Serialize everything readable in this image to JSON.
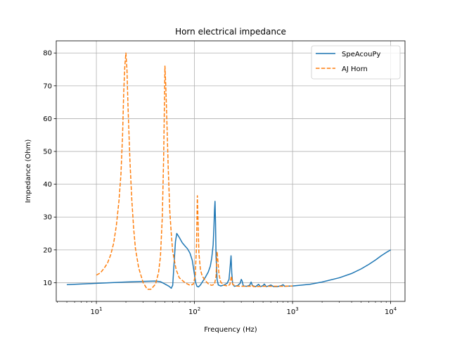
{
  "chart_data": {
    "type": "line",
    "title": "Horn electrical impedance",
    "xlabel": "Frequency (Hz)",
    "ylabel": "Impedance (Ohm)",
    "xscale": "log",
    "xlim": [
      3.9,
      14000
    ],
    "ylim": [
      4.3,
      83.7
    ],
    "grid": true,
    "legend_position": "top-right",
    "x_ticks": [
      {
        "value": 10,
        "base": "10",
        "exp": "1"
      },
      {
        "value": 100,
        "base": "10",
        "exp": "2"
      },
      {
        "value": 1000,
        "base": "10",
        "exp": "3"
      },
      {
        "value": 10000,
        "base": "10",
        "exp": "4"
      }
    ],
    "y_ticks": [
      10,
      20,
      30,
      40,
      50,
      60,
      70,
      80
    ],
    "series": [
      {
        "name": "SpeAcouPy",
        "color": "#1f77b4",
        "dash": "solid",
        "points": [
          [
            5,
            9.4
          ],
          [
            10,
            9.8
          ],
          [
            20,
            10.2
          ],
          [
            30,
            10.4
          ],
          [
            40,
            10.5
          ],
          [
            45,
            10.3
          ],
          [
            50,
            9.6
          ],
          [
            55,
            8.9
          ],
          [
            58,
            8.3
          ],
          [
            60,
            9.2
          ],
          [
            62,
            16.0
          ],
          [
            64,
            22.5
          ],
          [
            66,
            25.0
          ],
          [
            70,
            23.8
          ],
          [
            75,
            22.2
          ],
          [
            80,
            21.2
          ],
          [
            85,
            20.3
          ],
          [
            90,
            19.0
          ],
          [
            95,
            16.8
          ],
          [
            100,
            12.5
          ],
          [
            103,
            10.0
          ],
          [
            106,
            8.9
          ],
          [
            110,
            8.7
          ],
          [
            115,
            9.3
          ],
          [
            122,
            10.5
          ],
          [
            130,
            11.8
          ],
          [
            138,
            13.2
          ],
          [
            145,
            15.0
          ],
          [
            150,
            17.5
          ],
          [
            155,
            21.5
          ],
          [
            158,
            27.0
          ],
          [
            160,
            32.0
          ],
          [
            162,
            34.8
          ],
          [
            164,
            28.0
          ],
          [
            166,
            18.0
          ],
          [
            170,
            11.0
          ],
          [
            175,
            9.3
          ],
          [
            185,
            9.0
          ],
          [
            200,
            9.3
          ],
          [
            215,
            9.8
          ],
          [
            225,
            11.0
          ],
          [
            232,
            15.5
          ],
          [
            236,
            18.2
          ],
          [
            240,
            13.0
          ],
          [
            245,
            9.6
          ],
          [
            255,
            8.9
          ],
          [
            275,
            9.1
          ],
          [
            292,
            9.8
          ],
          [
            300,
            11.0
          ],
          [
            306,
            10.5
          ],
          [
            315,
            9.0
          ],
          [
            340,
            8.9
          ],
          [
            365,
            9.2
          ],
          [
            378,
            10.2
          ],
          [
            390,
            9.1
          ],
          [
            420,
            8.8
          ],
          [
            450,
            9.5
          ],
          [
            470,
            8.8
          ],
          [
            500,
            9.1
          ],
          [
            515,
            9.6
          ],
          [
            540,
            8.8
          ],
          [
            580,
            9.1
          ],
          [
            600,
            9.3
          ],
          [
            640,
            8.8
          ],
          [
            700,
            8.8
          ],
          [
            770,
            9.1
          ],
          [
            800,
            9.4
          ],
          [
            830,
            8.9
          ],
          [
            1000,
            9.0
          ],
          [
            1500,
            9.5
          ],
          [
            2000,
            10.2
          ],
          [
            3000,
            11.5
          ],
          [
            4000,
            12.8
          ],
          [
            5000,
            14.2
          ],
          [
            6000,
            15.6
          ],
          [
            7000,
            16.9
          ],
          [
            8000,
            18.2
          ],
          [
            9000,
            19.2
          ],
          [
            10000,
            20.0
          ]
        ]
      },
      {
        "name": "AJ Horn",
        "color": "#ff7f0e",
        "dash": "dashed",
        "points": [
          [
            10,
            12.3
          ],
          [
            11,
            13.0
          ],
          [
            12,
            14.4
          ],
          [
            13,
            16.0
          ],
          [
            14,
            18.5
          ],
          [
            15,
            22.0
          ],
          [
            16,
            27.5
          ],
          [
            17,
            35.0
          ],
          [
            17.8,
            43.0
          ],
          [
            18.5,
            55.0
          ],
          [
            19,
            68.0
          ],
          [
            19.5,
            76.0
          ],
          [
            20,
            80.0
          ],
          [
            20.5,
            75.0
          ],
          [
            21,
            64.0
          ],
          [
            22,
            47.0
          ],
          [
            23,
            35.0
          ],
          [
            24,
            26.5
          ],
          [
            25,
            20.5
          ],
          [
            27,
            14.5
          ],
          [
            30,
            10.0
          ],
          [
            33,
            8.0
          ],
          [
            36,
            8.0
          ],
          [
            40,
            9.5
          ],
          [
            43,
            13.0
          ],
          [
            45,
            18.0
          ],
          [
            47,
            30.0
          ],
          [
            48.5,
            48.0
          ],
          [
            49.5,
            66.0
          ],
          [
            50,
            76.0
          ],
          [
            51,
            70.0
          ],
          [
            52,
            62.0
          ],
          [
            54,
            45.0
          ],
          [
            56,
            32.0
          ],
          [
            58,
            25.0
          ],
          [
            60,
            19.5
          ],
          [
            65,
            14.0
          ],
          [
            70,
            11.5
          ],
          [
            80,
            10.0
          ],
          [
            90,
            9.2
          ],
          [
            97,
            9.5
          ],
          [
            102,
            12.0
          ],
          [
            105,
            22.0
          ],
          [
            107,
            36.5
          ],
          [
            109,
            28.0
          ],
          [
            111,
            19.0
          ],
          [
            115,
            14.0
          ],
          [
            120,
            12.0
          ],
          [
            130,
            10.5
          ],
          [
            140,
            9.5
          ],
          [
            150,
            9.2
          ],
          [
            160,
            9.5
          ],
          [
            166,
            12.0
          ],
          [
            170,
            19.5
          ],
          [
            173,
            17.0
          ],
          [
            178,
            12.5
          ],
          [
            185,
            10.2
          ],
          [
            200,
            9.2
          ],
          [
            220,
            9.0
          ],
          [
            230,
            9.5
          ],
          [
            238,
            12.0
          ],
          [
            245,
            9.5
          ],
          [
            260,
            9.0
          ],
          [
            300,
            8.9
          ],
          [
            370,
            8.9
          ],
          [
            380,
            9.3
          ],
          [
            400,
            8.8
          ],
          [
            500,
            8.9
          ],
          [
            600,
            8.9
          ],
          [
            800,
            8.9
          ],
          [
            1000,
            9.0
          ]
        ]
      }
    ]
  }
}
